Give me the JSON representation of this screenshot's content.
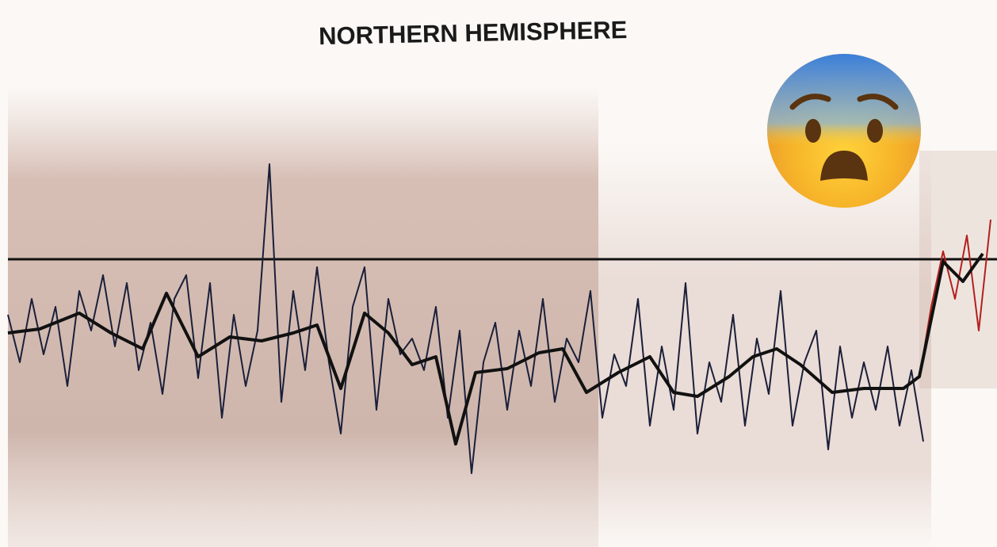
{
  "chart_data": {
    "type": "line",
    "title": "NORTHERN HEMISPHERE",
    "xlim": [
      0,
      1258
    ],
    "ylim": [
      -3.63,
      3.27
    ],
    "hline": 0,
    "series": [
      {
        "color": "#1a1f3a",
        "width": 2,
        "x": [
          10,
          25,
          40,
          55,
          70,
          85,
          100,
          115,
          130,
          145,
          160,
          175,
          190,
          205,
          220,
          235,
          250,
          265,
          280,
          295,
          310,
          325,
          340,
          355,
          370,
          385,
          400,
          415,
          430,
          445,
          460,
          475,
          490,
          505,
          520,
          535,
          550,
          565,
          580,
          595,
          610,
          625,
          640,
          655,
          670,
          685,
          700,
          715,
          730,
          745,
          760,
          775,
          790,
          805,
          820,
          835,
          850,
          865,
          880,
          895,
          910,
          925,
          940,
          955,
          970,
          985,
          1000,
          1015,
          1030,
          1045,
          1060,
          1075,
          1090,
          1105,
          1120,
          1135,
          1150,
          1165
        ],
        "values": [
          -0.7,
          -1.3,
          -0.5,
          -1.2,
          -0.6,
          -1.6,
          -0.4,
          -0.9,
          -0.2,
          -1.1,
          -0.3,
          -1.4,
          -0.8,
          -1.7,
          -0.5,
          -0.2,
          -1.5,
          -0.3,
          -2.0,
          -0.7,
          -1.6,
          -0.9,
          1.2,
          -1.8,
          -0.4,
          -1.4,
          -0.1,
          -1.3,
          -2.2,
          -0.6,
          -0.1,
          -1.9,
          -0.5,
          -1.2,
          -1.0,
          -1.4,
          -0.6,
          -2.0,
          -0.9,
          -2.7,
          -1.3,
          -0.8,
          -1.9,
          -0.9,
          -1.6,
          -0.5,
          -1.8,
          -1.0,
          -1.3,
          -0.4,
          -2.0,
          -1.2,
          -1.6,
          -0.5,
          -2.1,
          -1.1,
          -1.9,
          -0.3,
          -2.2,
          -1.3,
          -1.8,
          -0.7,
          -2.1,
          -1.0,
          -1.7,
          -0.4,
          -2.1,
          -1.3,
          -0.9,
          -2.4,
          -1.1,
          -2.0,
          -1.3,
          -1.9,
          -1.1,
          -2.1,
          -1.4,
          -2.3
        ]
      },
      {
        "color": "#b3201c",
        "width": 2,
        "x": [
          1160,
          1175,
          1190,
          1205,
          1220,
          1235,
          1250
        ],
        "values": [
          -1.5,
          -0.6,
          0.1,
          -0.5,
          0.3,
          -0.9,
          0.5
        ]
      },
      {
        "color": "#111111",
        "width": 4,
        "x": [
          10,
          50,
          100,
          140,
          180,
          210,
          250,
          290,
          330,
          370,
          400,
          430,
          460,
          490,
          520,
          550,
          575,
          600,
          640,
          680,
          710,
          740,
          780,
          820,
          850,
          880,
          920,
          950,
          980,
          1010,
          1050,
          1090,
          1140,
          1160,
          1190,
          1215,
          1240
        ],
        "values": [
          -0.93,
          -0.88,
          -0.68,
          -0.93,
          -1.13,
          -0.43,
          -1.23,
          -0.98,
          -1.03,
          -0.93,
          -0.83,
          -1.63,
          -0.68,
          -0.93,
          -1.33,
          -1.23,
          -2.33,
          -1.43,
          -1.38,
          -1.18,
          -1.13,
          -1.68,
          -1.43,
          -1.23,
          -1.68,
          -1.73,
          -1.48,
          -1.23,
          -1.13,
          -1.33,
          -1.68,
          -1.63,
          -1.63,
          -1.48,
          -0.03,
          -0.28,
          0.07
        ]
      }
    ]
  }
}
